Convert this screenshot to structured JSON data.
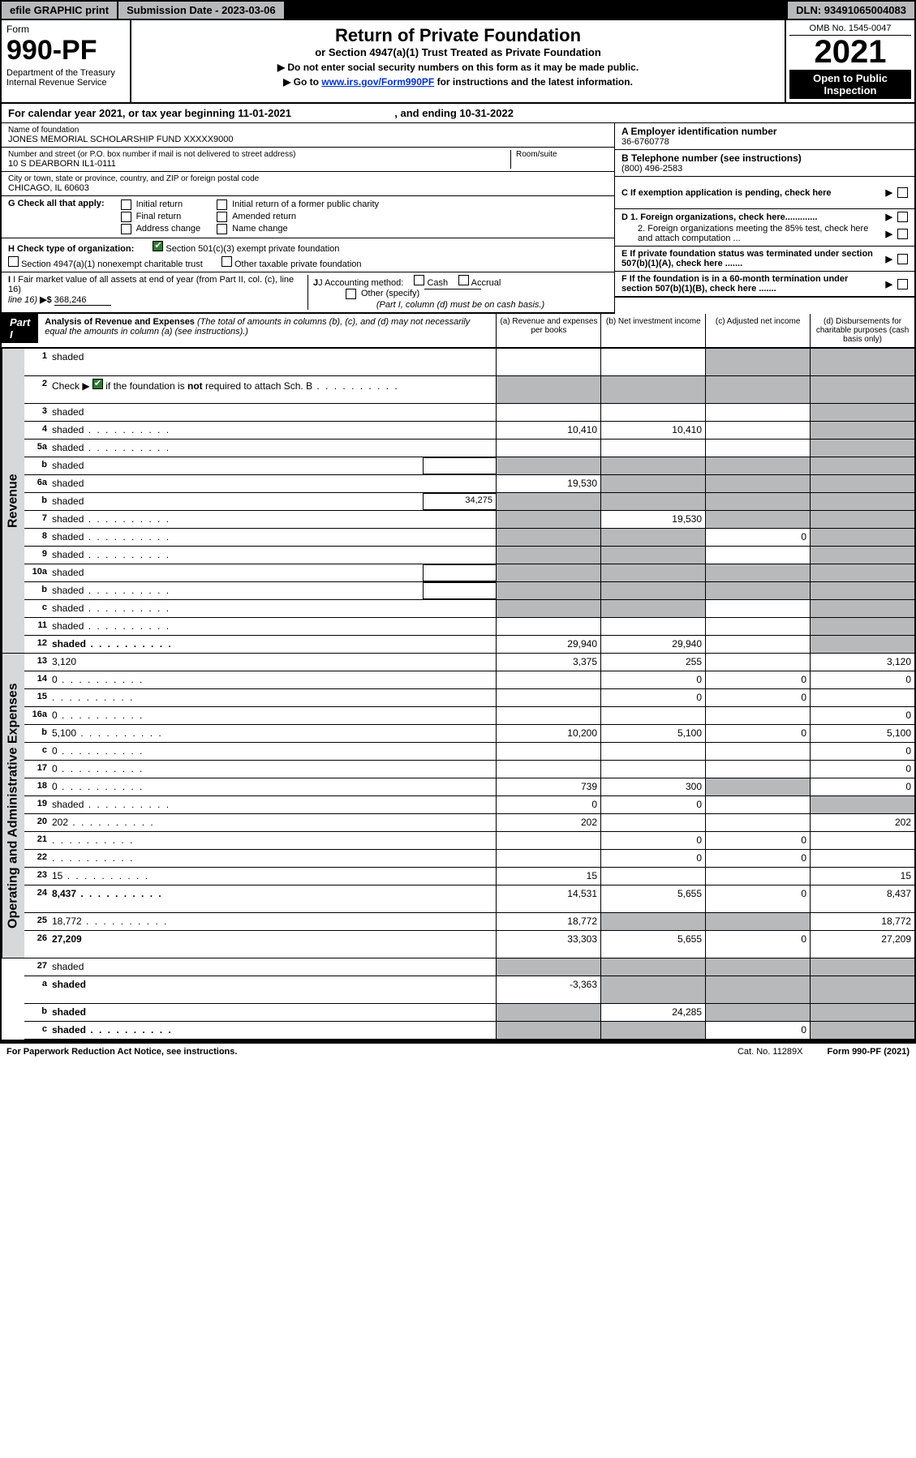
{
  "topbar": {
    "efile": "efile GRAPHIC print",
    "submission": "Submission Date - 2023-03-06",
    "dln": "DLN: 93491065004083"
  },
  "header": {
    "form_label": "Form",
    "form_number": "990-PF",
    "dept": "Department of the Treasury\nInternal Revenue Service",
    "title": "Return of Private Foundation",
    "subtitle": "or Section 4947(a)(1) Trust Treated as Private Foundation",
    "instr1": "▶ Do not enter social security numbers on this form as it may be made public.",
    "instr2_pre": "▶ Go to ",
    "instr2_link": "www.irs.gov/Form990PF",
    "instr2_post": " for instructions and the latest information.",
    "omb": "OMB No. 1545-0047",
    "year": "2021",
    "open": "Open to Public Inspection"
  },
  "calyear": {
    "text_pre": "For calendar year 2021, or tax year beginning 11-01-2021",
    "text_mid": ", and ending 10-31-2022"
  },
  "info": {
    "name_label": "Name of foundation",
    "name": "JONES MEMORIAL SCHOLARSHIP FUND XXXXX9000",
    "addr_label": "Number and street (or P.O. box number if mail is not delivered to street address)",
    "addr": "10 S DEARBORN IL1-0111",
    "room_label": "Room/suite",
    "city_label": "City or town, state or province, country, and ZIP or foreign postal code",
    "city": "CHICAGO, IL  60603",
    "a_label": "A Employer identification number",
    "a_val": "36-6760778",
    "b_label": "B Telephone number (see instructions)",
    "b_val": "(800) 496-2583",
    "c_label": "C If exemption application is pending, check here",
    "d1": "D 1. Foreign organizations, check here.............",
    "d2": "2. Foreign organizations meeting the 85% test, check here and attach computation ...",
    "e_label": "E  If private foundation status was terminated under section 507(b)(1)(A), check here .......",
    "f_label": "F  If the foundation is in a 60-month termination under section 507(b)(1)(B), check here ......."
  },
  "g": {
    "label": "G Check all that apply:",
    "opts": [
      "Initial return",
      "Final return",
      "Address change",
      "Initial return of a former public charity",
      "Amended return",
      "Name change"
    ]
  },
  "h": {
    "label": "H Check type of organization:",
    "opt1": "Section 501(c)(3) exempt private foundation",
    "opt2": "Section 4947(a)(1) nonexempt charitable trust",
    "opt3": "Other taxable private foundation"
  },
  "i": {
    "label": "I Fair market value of all assets at end of year (from Part II, col. (c), line 16)",
    "arrow": "▶$",
    "val": "368,246"
  },
  "j": {
    "label": "J Accounting method:",
    "cash": "Cash",
    "accrual": "Accrual",
    "other": "Other (specify)",
    "note": "(Part I, column (d) must be on cash basis.)"
  },
  "part1": {
    "badge": "Part I",
    "title": "Analysis of Revenue and Expenses",
    "note": "(The total of amounts in columns (b), (c), and (d) may not necessarily equal the amounts in column (a) (see instructions).)",
    "cols": {
      "a": "(a)   Revenue and expenses per books",
      "b": "(b)   Net investment income",
      "c": "(c)   Adjusted net income",
      "d": "(d)   Disbursements for charitable purposes (cash basis only)"
    }
  },
  "side": {
    "revenue": "Revenue",
    "expenses": "Operating and Administrative Expenses"
  },
  "rows": [
    {
      "n": "1",
      "d": "shaded",
      "a": "",
      "b": "",
      "c": "shaded",
      "tall": true
    },
    {
      "n": "2",
      "d": "shaded",
      "a": "shaded",
      "b": "shaded",
      "c": "shaded",
      "tall": true,
      "checked": true,
      "dots": true
    },
    {
      "n": "3",
      "d": "shaded",
      "a": "",
      "b": "",
      "c": ""
    },
    {
      "n": "4",
      "d": "shaded",
      "a": "10,410",
      "b": "10,410",
      "c": "",
      "dots": true
    },
    {
      "n": "5a",
      "d": "shaded",
      "a": "",
      "b": "",
      "c": "",
      "dots": true
    },
    {
      "n": "b",
      "d": "shaded",
      "a": "shaded",
      "b": "shaded",
      "c": "shaded",
      "sub": ""
    },
    {
      "n": "6a",
      "d": "shaded",
      "a": "19,530",
      "b": "shaded",
      "c": "shaded"
    },
    {
      "n": "b",
      "d": "shaded",
      "a": "shaded",
      "b": "shaded",
      "c": "shaded",
      "sub": "34,275"
    },
    {
      "n": "7",
      "d": "shaded",
      "a": "shaded",
      "b": "19,530",
      "c": "shaded",
      "dots": true
    },
    {
      "n": "8",
      "d": "shaded",
      "a": "shaded",
      "b": "shaded",
      "c": "0",
      "dots": true
    },
    {
      "n": "9",
      "d": "shaded",
      "a": "shaded",
      "b": "shaded",
      "c": "",
      "dots": true
    },
    {
      "n": "10a",
      "d": "shaded",
      "a": "shaded",
      "b": "shaded",
      "c": "shaded",
      "sub": ""
    },
    {
      "n": "b",
      "d": "shaded",
      "a": "shaded",
      "b": "shaded",
      "c": "shaded",
      "sub": "",
      "dots": true
    },
    {
      "n": "c",
      "d": "shaded",
      "a": "shaded",
      "b": "shaded",
      "c": "",
      "dots": true
    },
    {
      "n": "11",
      "d": "shaded",
      "a": "",
      "b": "",
      "c": "",
      "dots": true
    },
    {
      "n": "12",
      "d": "shaded",
      "a": "29,940",
      "b": "29,940",
      "c": "",
      "bold": true,
      "dots": true
    }
  ],
  "exp_rows": [
    {
      "n": "13",
      "d": "3,120",
      "a": "3,375",
      "b": "255",
      "c": ""
    },
    {
      "n": "14",
      "d": "0",
      "a": "",
      "b": "0",
      "c": "0",
      "dots": true
    },
    {
      "n": "15",
      "d": "",
      "a": "",
      "b": "0",
      "c": "0",
      "dots": true
    },
    {
      "n": "16a",
      "d": "0",
      "a": "",
      "b": "",
      "c": "",
      "dots": true
    },
    {
      "n": "b",
      "d": "5,100",
      "a": "10,200",
      "b": "5,100",
      "c": "0",
      "dots": true
    },
    {
      "n": "c",
      "d": "0",
      "a": "",
      "b": "",
      "c": "",
      "dots": true
    },
    {
      "n": "17",
      "d": "0",
      "a": "",
      "b": "",
      "c": "",
      "dots": true
    },
    {
      "n": "18",
      "d": "0",
      "a": "739",
      "b": "300",
      "c": "shaded",
      "dots": true
    },
    {
      "n": "19",
      "d": "shaded",
      "a": "0",
      "b": "0",
      "c": "",
      "dots": true
    },
    {
      "n": "20",
      "d": "202",
      "a": "202",
      "b": "",
      "c": "",
      "dots": true
    },
    {
      "n": "21",
      "d": "",
      "a": "",
      "b": "0",
      "c": "0",
      "dots": true
    },
    {
      "n": "22",
      "d": "",
      "a": "",
      "b": "0",
      "c": "0",
      "dots": true
    },
    {
      "n": "23",
      "d": "15",
      "a": "15",
      "b": "",
      "c": "",
      "dots": true
    },
    {
      "n": "24",
      "d": "8,437",
      "a": "14,531",
      "b": "5,655",
      "c": "0",
      "bold": true,
      "tall": true,
      "dots": true
    },
    {
      "n": "25",
      "d": "18,772",
      "a": "18,772",
      "b": "shaded",
      "c": "shaded",
      "dots": true
    },
    {
      "n": "26",
      "d": "27,209",
      "a": "33,303",
      "b": "5,655",
      "c": "0",
      "bold": true,
      "tall": true
    }
  ],
  "sub_rows": [
    {
      "n": "27",
      "d": "shaded",
      "a": "shaded",
      "b": "shaded",
      "c": "shaded"
    },
    {
      "n": "a",
      "d": "shaded",
      "a": "-3,363",
      "b": "shaded",
      "c": "shaded",
      "bold": true,
      "tall": true
    },
    {
      "n": "b",
      "d": "shaded",
      "a": "shaded",
      "b": "24,285",
      "c": "shaded",
      "bold": true
    },
    {
      "n": "c",
      "d": "shaded",
      "a": "shaded",
      "b": "shaded",
      "c": "0",
      "bold": true,
      "dots": true
    }
  ],
  "footer": {
    "left": "For Paperwork Reduction Act Notice, see instructions.",
    "mid": "Cat. No. 11289X",
    "right": "Form 990-PF (2021)"
  }
}
